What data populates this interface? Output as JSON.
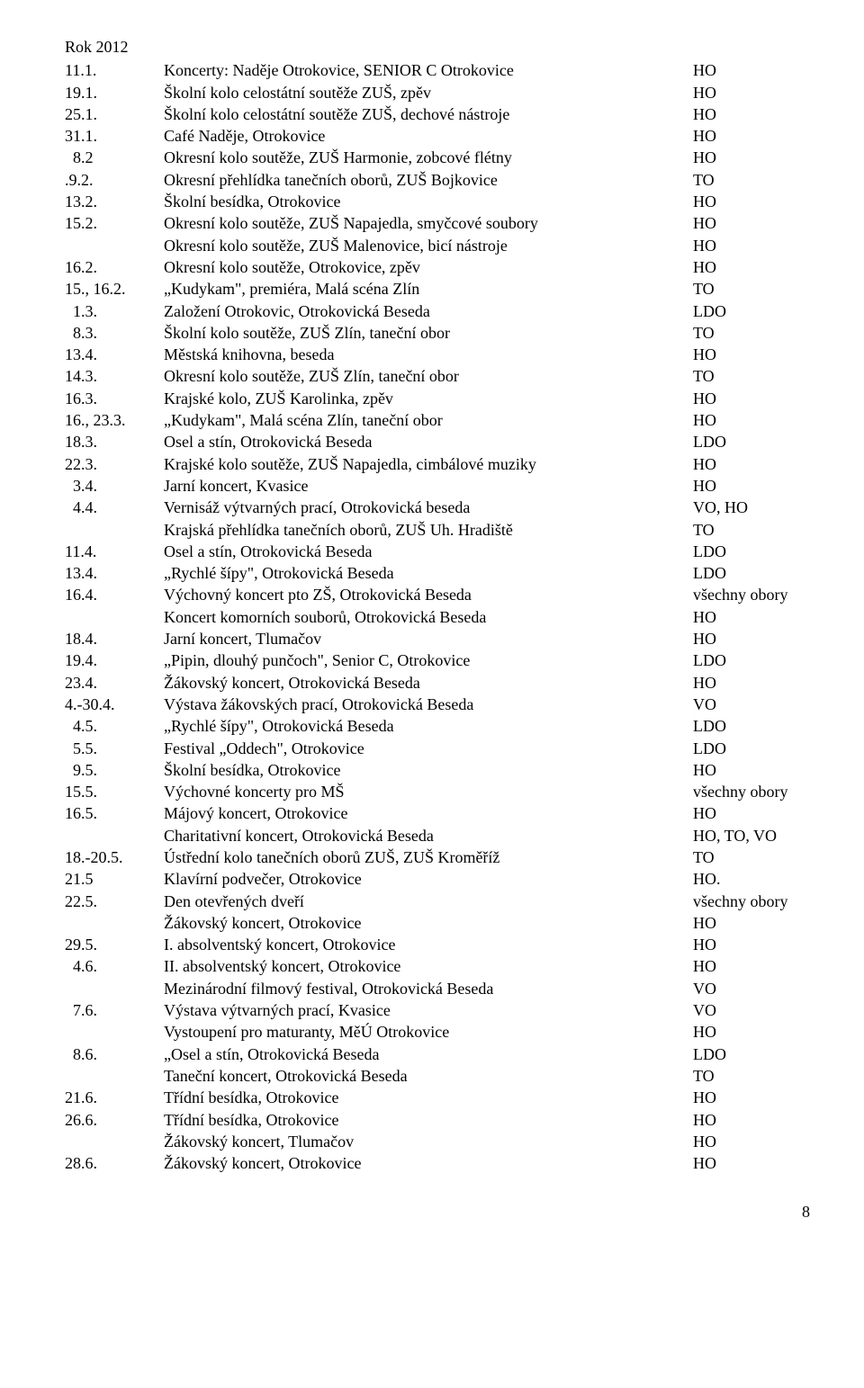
{
  "heading": "Rok 2012",
  "page_number": "8",
  "rows": [
    {
      "date": "11.1.",
      "desc": "Koncerty: Naděje Otrokovice, SENIOR C Otrokovice",
      "code": "HO"
    },
    {
      "date": "19.1.",
      "desc": "Školní kolo celostátní soutěže ZUŠ, zpěv",
      "code": "HO"
    },
    {
      "date": "25.1.",
      "desc": "Školní kolo celostátní soutěže ZUŠ, dechové nástroje",
      "code": "HO"
    },
    {
      "date": "31.1.",
      "desc": "Café Naděje, Otrokovice",
      "code": "HO"
    },
    {
      "date": "  8.2",
      "desc": "Okresní kolo soutěže, ZUŠ Harmonie, zobcové flétny",
      "code": "HO"
    },
    {
      "date": ".9.2.",
      "desc": "Okresní přehlídka tanečních oborů,  ZUŠ Bojkovice",
      "code": "TO"
    },
    {
      "date": "13.2.",
      "desc": "Školní besídka, Otrokovice",
      "code": "HO"
    },
    {
      "date": "",
      "desc": "",
      "code": ""
    },
    {
      "date": "15.2.",
      "desc": "Okresní kolo soutěže, ZUŠ Napajedla, smyčcové soubory",
      "code": "HO"
    },
    {
      "date": "",
      "desc": "Okresní kolo soutěže, ZUŠ Malenovice, bicí nástroje",
      "code": "HO"
    },
    {
      "date": "16.2.",
      "desc": "Okresní kolo soutěže, Otrokovice, zpěv",
      "code": "HO"
    },
    {
      "date": "15., 16.2.",
      "desc": "„Kudykam\", premiéra, Malá scéna Zlín",
      "code": "TO"
    },
    {
      "date": "  1.3.",
      "desc": "Založení Otrokovic, Otrokovická Beseda",
      "code": "LDO"
    },
    {
      "date": "  8.3.",
      "desc": "Školní kolo soutěže, ZUŠ Zlín, taneční obor",
      "code": "TO"
    },
    {
      "date": "13.4.",
      "desc": "Městská knihovna, beseda",
      "code": "HO"
    },
    {
      "date": "14.3.",
      "desc": "Okresní kolo soutěže, ZUŠ Zlín, taneční obor",
      "code": "TO"
    },
    {
      "date": "16.3.",
      "desc": "Krajské kolo, ZUŠ Karolinka, zpěv",
      "code": "HO"
    },
    {
      "date": "16., 23.3.",
      "desc": "„Kudykam\", Malá scéna Zlín, taneční obor",
      "code": "HO"
    },
    {
      "date": "18.3.",
      "desc": "Osel a stín, Otrokovická Beseda",
      "code": "LDO"
    },
    {
      "date": "22.3.",
      "desc": "Krajské kolo soutěže, ZUŠ Napajedla, cimbálové muziky",
      "code": "HO"
    },
    {
      "date": "  3.4.",
      "desc": "Jarní koncert, Kvasice",
      "code": "HO"
    },
    {
      "date": "  4.4.",
      "desc": "Vernisáž výtvarných prací, Otrokovická beseda",
      "code": "VO, HO"
    },
    {
      "date": "",
      "desc": "Krajská přehlídka tanečních oborů,  ZUŠ Uh. Hradiště",
      "code": "TO"
    },
    {
      "date": "11.4.",
      "desc": "Osel a stín, Otrokovická Beseda",
      "code": "LDO"
    },
    {
      "date": "13.4.",
      "desc": "„Rychlé šípy\", Otrokovická Beseda",
      "code": "LDO"
    },
    {
      "date": "16.4.",
      "desc": "Výchovný koncert pto ZŠ, Otrokovická Beseda",
      "code": "všechny obory"
    },
    {
      "date": "",
      "desc": "Koncert komorních souborů, Otrokovická Beseda",
      "code": "HO"
    },
    {
      "date": "18.4.",
      "desc": "Jarní koncert, Tlumačov",
      "code": "HO"
    },
    {
      "date": "19.4.",
      "desc": "„Pipin, dlouhý punčoch\", Senior C, Otrokovice",
      "code": "LDO"
    },
    {
      "date": "23.4.",
      "desc": "Žákovský koncert, Otrokovická Beseda",
      "code": "HO"
    },
    {
      "date": "4.-30.4.",
      "desc": "Výstava žákovských prací, Otrokovická Beseda",
      "code": "VO"
    },
    {
      "date": "  4.5.",
      "desc": "„Rychlé šípy\", Otrokovická Beseda",
      "code": "LDO"
    },
    {
      "date": "  5.5.",
      "desc": "Festival „Oddech\", Otrokovice",
      "code": "LDO"
    },
    {
      "date": "  9.5.",
      "desc": "Školní besídka, Otrokovice",
      "code": "HO"
    },
    {
      "date": "15.5.",
      "desc": "Výchovné koncerty pro MŠ",
      "code": "všechny obory"
    },
    {
      "date": "16.5.",
      "desc": "Májový koncert, Otrokovice",
      "code": "HO"
    },
    {
      "date": "",
      "desc": "Charitativní koncert, Otrokovická Beseda",
      "code": "HO, TO, VO"
    },
    {
      "date": "18.-20.5.",
      "desc": "Ústřední kolo tanečních oborů ZUŠ,  ZUŠ Kroměříž",
      "code": "TO"
    },
    {
      "date": "21.5",
      "desc": "Klavírní podvečer, Otrokovice",
      "code": "HO."
    },
    {
      "date": "22.5.",
      "desc": "Den otevřených dveří",
      "code": "všechny obory"
    },
    {
      "date": "",
      "desc": "Žákovský koncert, Otrokovice",
      "code": "HO"
    },
    {
      "date": "29.5.",
      "desc": "I. absolventský koncert, Otrokovice",
      "code": "HO"
    },
    {
      "date": "  4.6.",
      "desc": "II. absolventský koncert, Otrokovice",
      "code": "HO"
    },
    {
      "date": "",
      "desc": "Mezinárodní filmový festival, Otrokovická Beseda",
      "code": "VO"
    },
    {
      "date": "  7.6.",
      "desc": "Výstava výtvarných prací, Kvasice",
      "code": "VO"
    },
    {
      "date": "",
      "desc": "Vystoupení pro maturanty, MěÚ Otrokovice",
      "code": "HO"
    },
    {
      "date": "  8.6.",
      "desc": "„Osel a stín, Otrokovická Beseda",
      "code": "LDO"
    },
    {
      "date": "",
      "desc": "Taneční koncert, Otrokovická Beseda",
      "code": "TO"
    },
    {
      "date": "21.6.",
      "desc": "Třídní besídka, Otrokovice",
      "code": "HO"
    },
    {
      "date": "26.6.",
      "desc": "Třídní besídka, Otrokovice",
      "code": "HO"
    },
    {
      "date": "",
      "desc": "Žákovský koncert, Tlumačov",
      "code": "HO"
    },
    {
      "date": "28.6.",
      "desc": "Žákovský koncert, Otrokovice",
      "code": "HO"
    }
  ]
}
